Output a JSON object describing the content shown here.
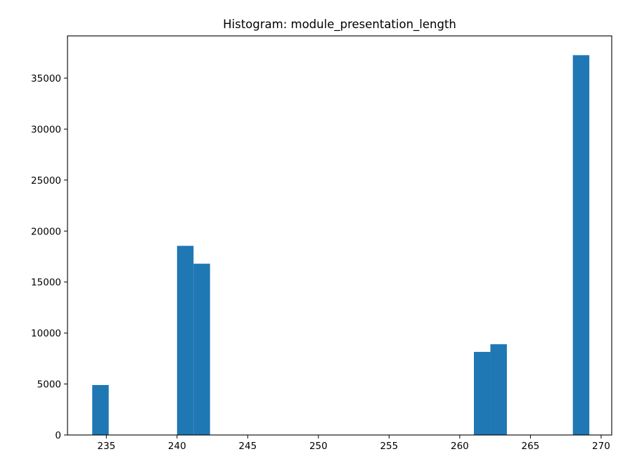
{
  "chart_data": {
    "type": "bar",
    "title": "Histogram: module_presentation_length",
    "xlabel": "",
    "ylabel": "",
    "xlim": [
      232.25,
      270.75
    ],
    "ylim": [
      0,
      39140
    ],
    "xticks": [
      235,
      240,
      245,
      250,
      255,
      260,
      265,
      270
    ],
    "yticks": [
      0,
      5000,
      10000,
      15000,
      20000,
      25000,
      30000,
      35000
    ],
    "bin_width": 1.1667,
    "bars": [
      {
        "x0": 234.0,
        "x1": 235.1667,
        "value": 4900
      },
      {
        "x0": 240.0,
        "x1": 241.1667,
        "value": 18550
      },
      {
        "x0": 241.1667,
        "x1": 242.3333,
        "value": 16800
      },
      {
        "x0": 261.0,
        "x1": 262.1667,
        "value": 8150
      },
      {
        "x0": 262.1667,
        "x1": 263.3333,
        "value": 8900
      },
      {
        "x0": 268.0,
        "x1": 269.1667,
        "value": 37250
      }
    ],
    "bar_color": "#1f77b4",
    "grid": false
  }
}
